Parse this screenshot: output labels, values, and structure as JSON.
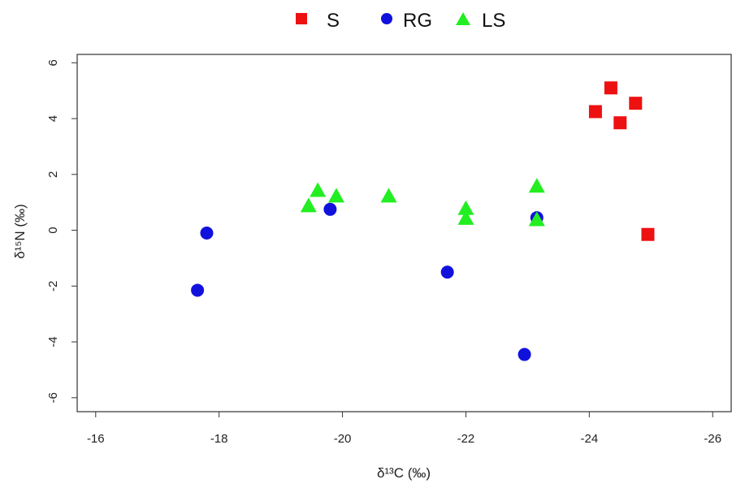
{
  "chart_data": {
    "type": "scatter",
    "xlabel": "δ¹³C (‰)",
    "ylabel": "δ¹⁵N (‰)",
    "xlim": [
      -15.7,
      -26.3
    ],
    "ylim": [
      -6.5,
      6.3
    ],
    "xticks": [
      -16,
      -18,
      -20,
      -22,
      -24,
      -26
    ],
    "yticks": [
      6,
      4,
      2,
      0,
      -2,
      -4,
      -6
    ],
    "grid": false,
    "legend_position": "top",
    "series": [
      {
        "name": "S",
        "marker": "square",
        "color": "#ee1111",
        "points": [
          {
            "x": -24.1,
            "y": 4.25
          },
          {
            "x": -24.35,
            "y": 5.1
          },
          {
            "x": -24.5,
            "y": 3.85
          },
          {
            "x": -24.75,
            "y": 4.55
          },
          {
            "x": -24.95,
            "y": -0.15
          }
        ]
      },
      {
        "name": "RG",
        "marker": "circle",
        "color": "#1111dd",
        "points": [
          {
            "x": -17.65,
            "y": -2.15
          },
          {
            "x": -17.8,
            "y": -0.1
          },
          {
            "x": -19.8,
            "y": 0.75
          },
          {
            "x": -21.7,
            "y": -1.5
          },
          {
            "x": -22.95,
            "y": -4.45
          },
          {
            "x": -23.15,
            "y": 0.45
          }
        ]
      },
      {
        "name": "LS",
        "marker": "triangle",
        "color": "#22ee22",
        "points": [
          {
            "x": -19.45,
            "y": 0.85
          },
          {
            "x": -19.6,
            "y": 1.4
          },
          {
            "x": -19.9,
            "y": 1.2
          },
          {
            "x": -20.75,
            "y": 1.2
          },
          {
            "x": -22.0,
            "y": 0.75
          },
          {
            "x": -22.0,
            "y": 0.4
          },
          {
            "x": -23.15,
            "y": 1.55
          },
          {
            "x": -23.15,
            "y": 0.35
          }
        ]
      }
    ]
  }
}
